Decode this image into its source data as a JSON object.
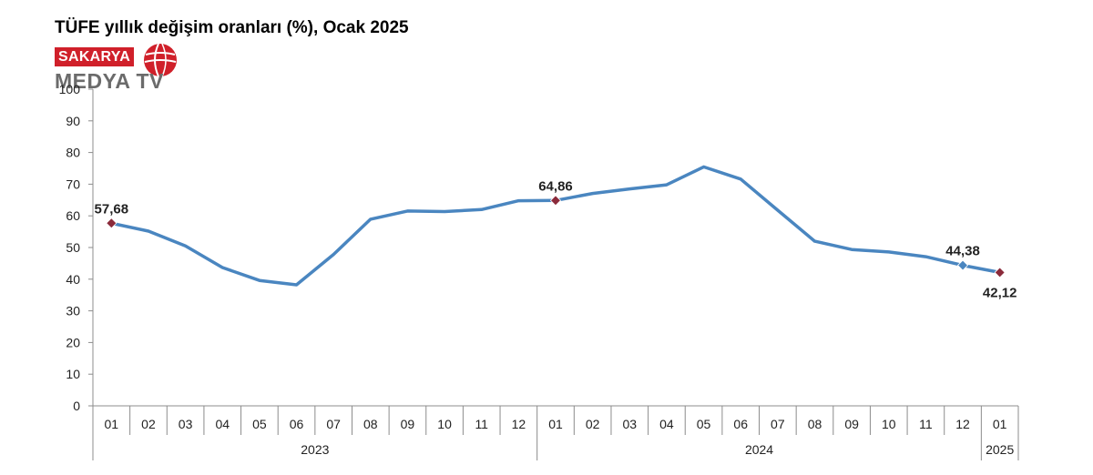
{
  "logo": {
    "badge_text": "SAKARYA",
    "sub_text": "MEDYA TV",
    "brand_color": "#d0202a",
    "icon": "globe-icon"
  },
  "chart_data": {
    "type": "line",
    "title": "TÜFE yıllık değişim oranları (%), Ocak 2025",
    "xlabel": "",
    "ylabel": "",
    "ylim": [
      0,
      100
    ],
    "yticks": [
      0,
      10,
      20,
      30,
      40,
      50,
      60,
      70,
      80,
      90,
      100
    ],
    "grid": false,
    "categories": [
      "01",
      "02",
      "03",
      "04",
      "05",
      "06",
      "07",
      "08",
      "09",
      "10",
      "11",
      "12",
      "01",
      "02",
      "03",
      "04",
      "05",
      "06",
      "07",
      "08",
      "09",
      "10",
      "11",
      "12",
      "01"
    ],
    "year_groups": [
      {
        "label": "2023",
        "start": 0,
        "end": 11
      },
      {
        "label": "2024",
        "start": 12,
        "end": 23
      },
      {
        "label": "2025",
        "start": 24,
        "end": 24
      }
    ],
    "series": [
      {
        "color": "#4a86c0",
        "values": [
          57.68,
          55.18,
          50.51,
          43.68,
          39.59,
          38.21,
          47.83,
          58.94,
          61.53,
          61.36,
          61.98,
          64.77,
          64.86,
          67.07,
          68.5,
          69.8,
          75.45,
          71.6,
          61.78,
          51.97,
          49.38,
          48.58,
          47.09,
          44.38,
          42.12
        ]
      }
    ],
    "markers": [
      {
        "index": 0,
        "label": "57,68",
        "position": "above",
        "color": "#8b2a3a"
      },
      {
        "index": 12,
        "label": "64,86",
        "position": "above",
        "color": "#8b2a3a"
      },
      {
        "index": 23,
        "label": "44,38",
        "position": "above",
        "color": "#4a86c0"
      },
      {
        "index": 24,
        "label": "42,12",
        "position": "below",
        "color": "#8b2a3a"
      }
    ]
  }
}
